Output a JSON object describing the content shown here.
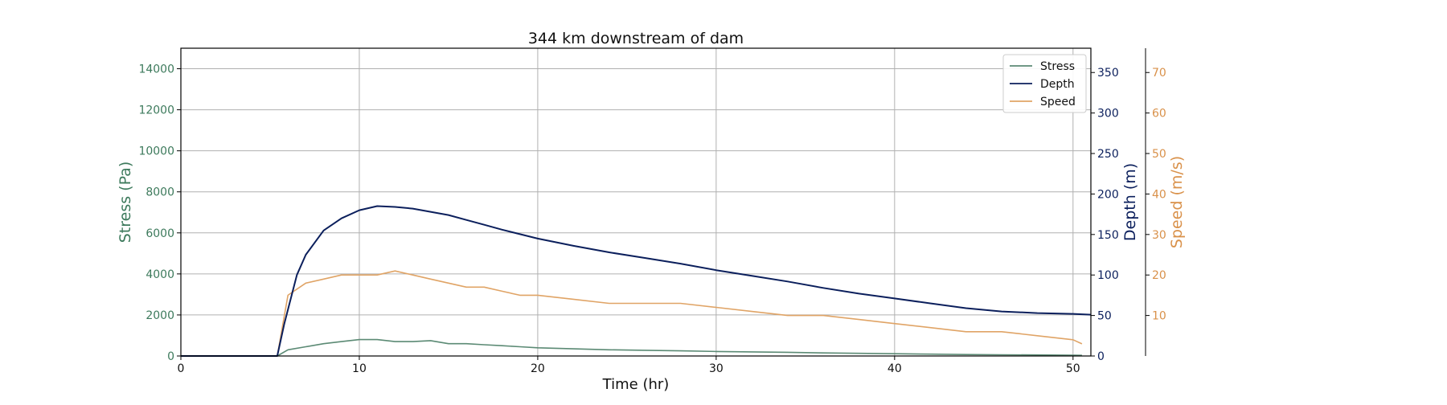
{
  "chart_data": {
    "type": "line",
    "title": "344 km downstream of dam",
    "xlabel": "Time (hr)",
    "xlim": [
      0,
      51
    ],
    "xticks": [
      0,
      10,
      20,
      30,
      40,
      50
    ],
    "grid": true,
    "legend_position": "top-right",
    "axes": [
      {
        "id": "stress",
        "label": "Stress (Pa)",
        "color": "#3d7a5c",
        "ylim": [
          0,
          15000
        ],
        "ticks": [
          0,
          2000,
          4000,
          6000,
          8000,
          10000,
          12000,
          14000
        ],
        "side": "left"
      },
      {
        "id": "depth",
        "label": "Depth (m)",
        "color": "#0b1f5c",
        "ylim": [
          0,
          380
        ],
        "ticks": [
          0,
          50,
          100,
          150,
          200,
          250,
          300,
          350
        ],
        "side": "right"
      },
      {
        "id": "speed",
        "label": "Speed (m/s)",
        "color": "#d9914a",
        "ylim": [
          0,
          76
        ],
        "ticks": [
          10,
          20,
          30,
          40,
          50,
          60,
          70
        ],
        "side": "right-outer"
      }
    ],
    "series": [
      {
        "name": "Stress",
        "axis": "stress",
        "color": "#5b8a74",
        "x": [
          0,
          5.4,
          6,
          7,
          8,
          9,
          10,
          11,
          12,
          13,
          14,
          15,
          16,
          17,
          18,
          19,
          20,
          22,
          24,
          26,
          28,
          30,
          32,
          34,
          36,
          38,
          40,
          42,
          44,
          46,
          48,
          50,
          50.5
        ],
        "y": [
          0,
          0,
          300,
          450,
          600,
          700,
          800,
          800,
          700,
          700,
          750,
          600,
          600,
          550,
          500,
          450,
          400,
          350,
          300,
          280,
          250,
          220,
          200,
          180,
          150,
          130,
          110,
          90,
          70,
          60,
          50,
          40,
          30
        ]
      },
      {
        "name": "Depth",
        "axis": "depth",
        "color": "#0b1f5c",
        "x": [
          0,
          5.4,
          5.8,
          6.5,
          7,
          8,
          9,
          10,
          11,
          12,
          13,
          14,
          15,
          16,
          17,
          18,
          20,
          22,
          24,
          26,
          28,
          30,
          32,
          34,
          36,
          38,
          40,
          42,
          44,
          46,
          48,
          50,
          51
        ],
        "y": [
          0,
          0,
          40,
          100,
          125,
          155,
          170,
          180,
          185,
          184,
          182,
          178,
          174,
          168,
          162,
          156,
          145,
          136,
          128,
          121,
          114,
          106,
          99,
          92,
          84,
          77,
          71,
          65,
          59,
          55,
          53,
          52,
          51
        ]
      },
      {
        "name": "Speed",
        "axis": "speed",
        "color": "#e0a466",
        "x": [
          0,
          5.4,
          6,
          7,
          8,
          9,
          10,
          11,
          12,
          13,
          14,
          15,
          16,
          17,
          18,
          19,
          20,
          22,
          24,
          26,
          28,
          30,
          32,
          34,
          36,
          38,
          40,
          42,
          44,
          46,
          48,
          50,
          50.5
        ],
        "y": [
          0,
          0,
          15,
          18,
          19,
          20,
          20,
          20,
          21,
          20,
          19,
          18,
          17,
          17,
          16,
          15,
          15,
          14,
          13,
          13,
          13,
          12,
          11,
          10,
          10,
          9,
          8,
          7,
          6,
          6,
          5,
          4,
          3
        ]
      }
    ]
  }
}
